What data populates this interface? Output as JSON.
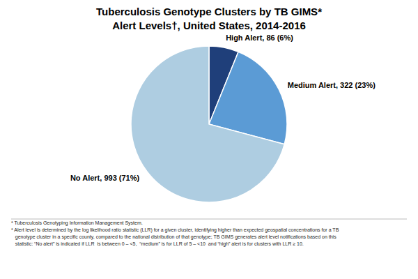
{
  "chart_data": {
    "type": "pie",
    "title": "Tuberculosis Genotype Clusters by TB GIMS*",
    "subtitle": "Alert Levels†, United States, 2014-2016",
    "values": [
      86,
      322,
      993
    ],
    "value_labels": [
      "High Alert, 86 (6%)",
      "Medium Alert, 322 (23%)",
      "No Alert, 993 (71%)"
    ],
    "data_labels": true,
    "colors": [
      "#1f3f7a",
      "#5b9bd5",
      "#aecde1"
    ],
    "annotations": [
      "* Tuberculosis Genotyping Information Management System.",
      "* Alert level is determined by the log likelihood ratio statistic (LLR) for a given cluster, identifying higher than expected geospatial concentrations for a TB",
      "   genotype cluster in a specific county, compared to the national distribution of that genotype; TB GIMS generates alert level notifications based on this",
      "   statistic: “No alert” is indicated if LLR  is between 0 – <5,  “medium” is for LLR of 5 – <10  and “high” alert is for clusters with LLR ≥ 10."
    ]
  }
}
